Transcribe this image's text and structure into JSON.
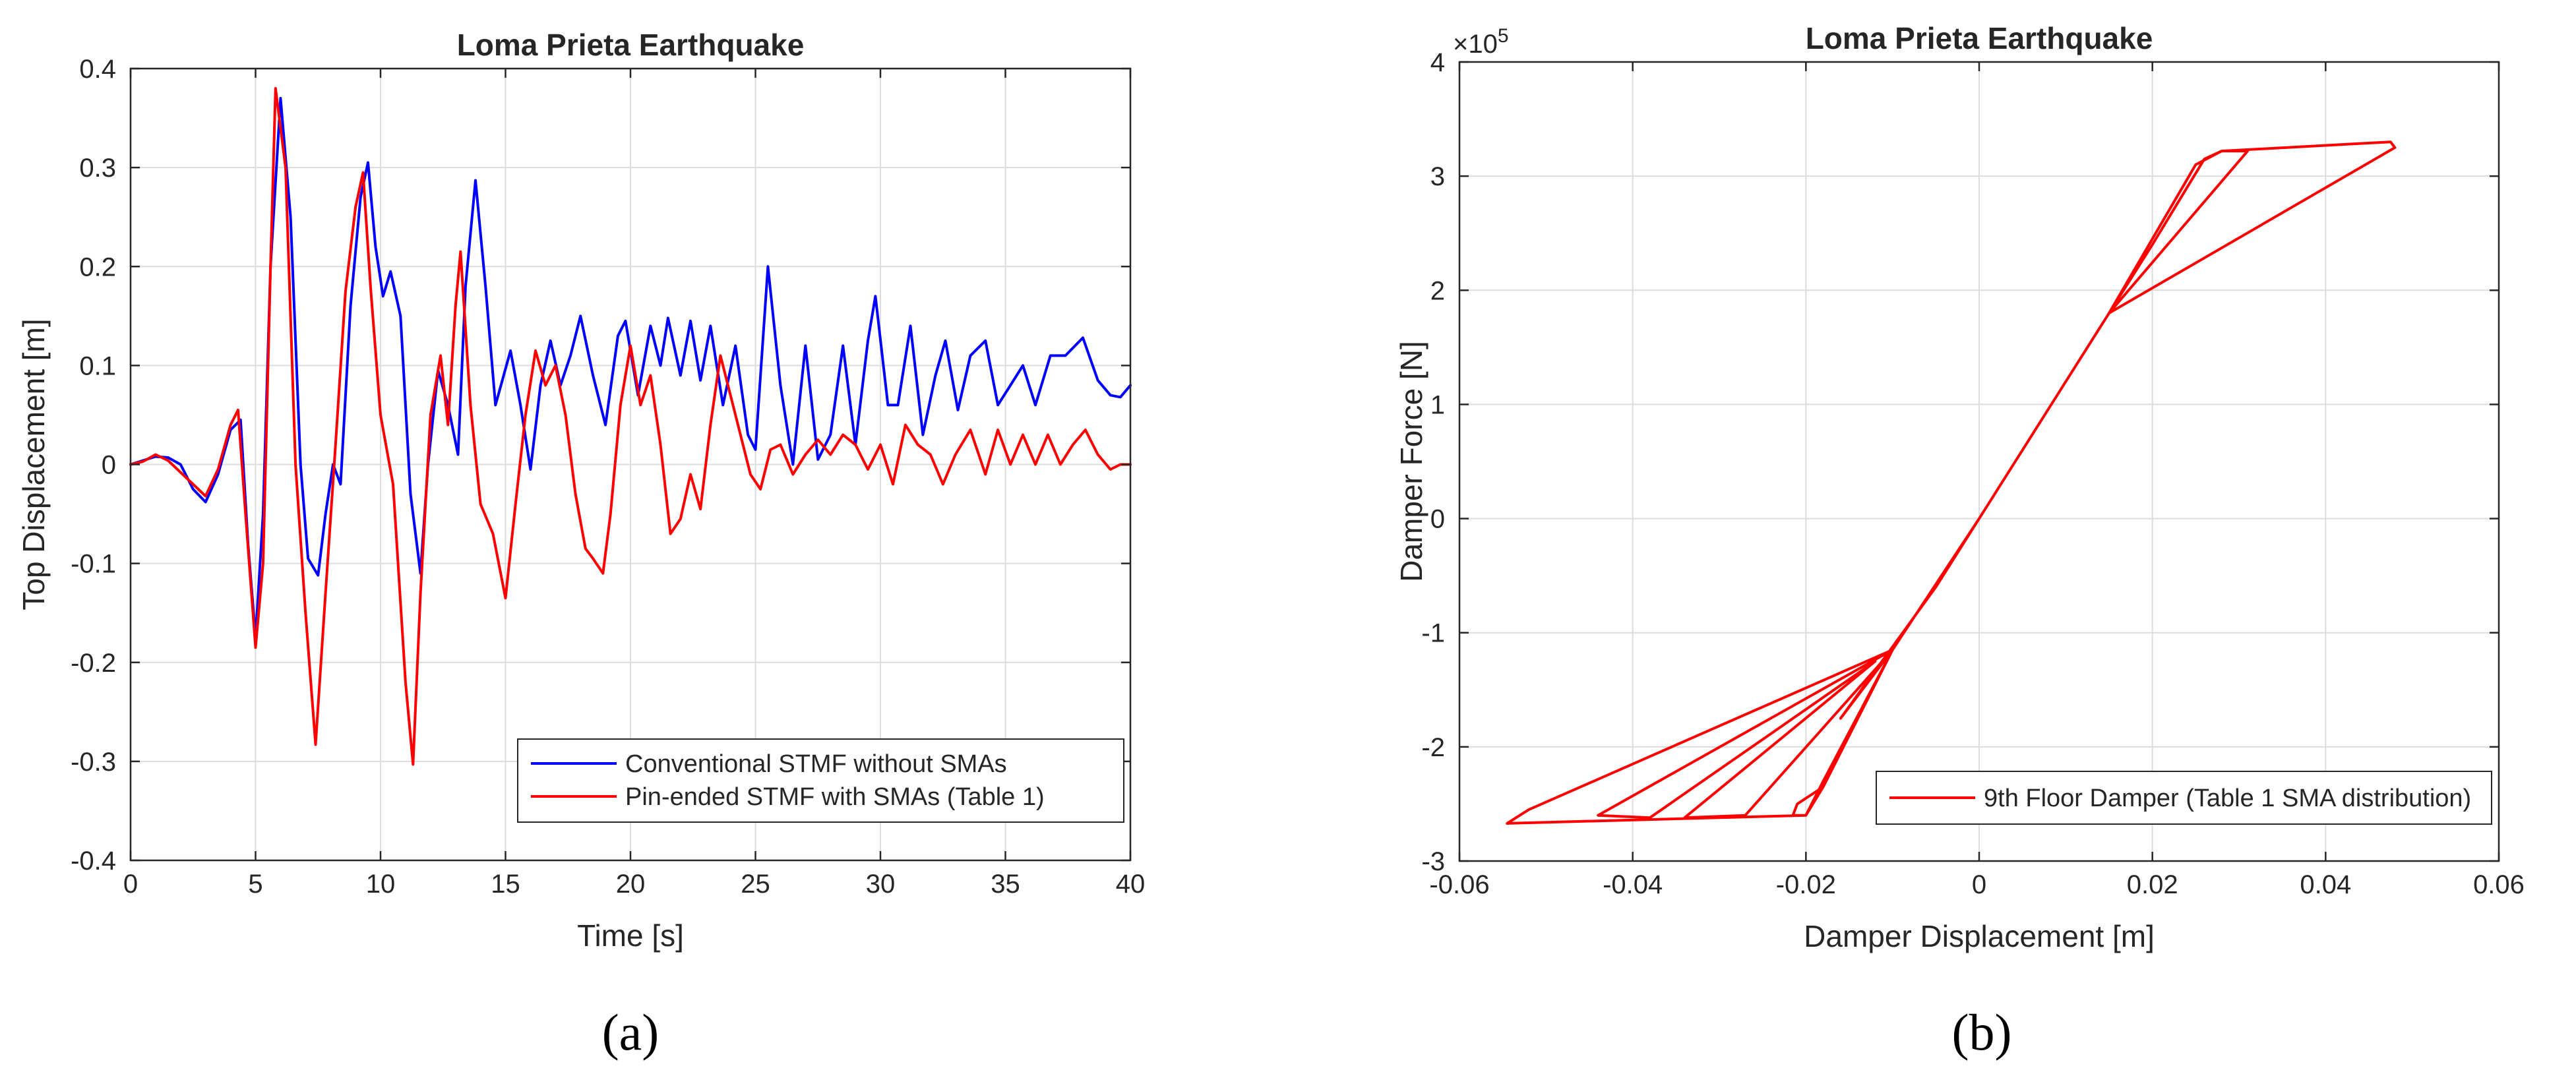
{
  "chart_data": [
    {
      "type": "line",
      "panel_label": "(a)",
      "title": "Loma Prieta Earthquake",
      "xlabel": "Time [s]",
      "ylabel": "Top Displacement [m]",
      "xlim": [
        0,
        40
      ],
      "ylim": [
        -0.4,
        0.4
      ],
      "xticks": [
        0,
        5,
        10,
        15,
        20,
        25,
        30,
        35,
        40
      ],
      "yticks": [
        -0.4,
        -0.3,
        -0.2,
        -0.1,
        0,
        0.1,
        0.2,
        0.3,
        0.4
      ],
      "xtick_labels": [
        "0",
        "5",
        "10",
        "15",
        "20",
        "25",
        "30",
        "35",
        "40"
      ],
      "ytick_labels": [
        "-0.4",
        "-0.3",
        "-0.2",
        "-0.1",
        "0",
        "0.1",
        "0.2",
        "0.3",
        "0.4"
      ],
      "grid": true,
      "legend_position": "bottom-right",
      "series": [
        {
          "name": "Conventional STMF without SMAs",
          "color": "#0000ff",
          "points": [
            [
              0,
              0
            ],
            [
              0.5,
              0.004
            ],
            [
              1.0,
              0.008
            ],
            [
              1.5,
              0.007
            ],
            [
              2.0,
              0.0
            ],
            [
              2.5,
              -0.025
            ],
            [
              3.0,
              -0.038
            ],
            [
              3.5,
              -0.01
            ],
            [
              4.0,
              0.035
            ],
            [
              4.4,
              0.045
            ],
            [
              4.7,
              -0.08
            ],
            [
              5.0,
              -0.175
            ],
            [
              5.3,
              -0.05
            ],
            [
              5.6,
              0.2
            ],
            [
              6.0,
              0.37
            ],
            [
              6.4,
              0.25
            ],
            [
              6.8,
              0.0
            ],
            [
              7.1,
              -0.095
            ],
            [
              7.5,
              -0.112
            ],
            [
              7.8,
              -0.05
            ],
            [
              8.1,
              0.0
            ],
            [
              8.4,
              -0.02
            ],
            [
              8.8,
              0.16
            ],
            [
              9.2,
              0.27
            ],
            [
              9.5,
              0.305
            ],
            [
              9.8,
              0.22
            ],
            [
              10.1,
              0.17
            ],
            [
              10.4,
              0.195
            ],
            [
              10.8,
              0.15
            ],
            [
              11.2,
              -0.03
            ],
            [
              11.6,
              -0.11
            ],
            [
              11.9,
              0.0
            ],
            [
              12.3,
              0.095
            ],
            [
              12.7,
              0.06
            ],
            [
              13.1,
              0.01
            ],
            [
              13.4,
              0.18
            ],
            [
              13.8,
              0.287
            ],
            [
              14.2,
              0.18
            ],
            [
              14.6,
              0.06
            ],
            [
              15.2,
              0.115
            ],
            [
              15.6,
              0.06
            ],
            [
              16.0,
              -0.005
            ],
            [
              16.4,
              0.08
            ],
            [
              16.8,
              0.125
            ],
            [
              17.2,
              0.08
            ],
            [
              17.6,
              0.11
            ],
            [
              18.0,
              0.15
            ],
            [
              18.5,
              0.09
            ],
            [
              19.0,
              0.04
            ],
            [
              19.5,
              0.13
            ],
            [
              19.8,
              0.145
            ],
            [
              20.3,
              0.07
            ],
            [
              20.8,
              0.14
            ],
            [
              21.2,
              0.1
            ],
            [
              21.5,
              0.148
            ],
            [
              22.0,
              0.09
            ],
            [
              22.4,
              0.145
            ],
            [
              22.8,
              0.085
            ],
            [
              23.2,
              0.14
            ],
            [
              23.7,
              0.06
            ],
            [
              24.2,
              0.12
            ],
            [
              24.7,
              0.03
            ],
            [
              25.0,
              0.015
            ],
            [
              25.5,
              0.2
            ],
            [
              26.0,
              0.08
            ],
            [
              26.5,
              0.0
            ],
            [
              27.0,
              0.12
            ],
            [
              27.5,
              0.005
            ],
            [
              28.0,
              0.03
            ],
            [
              28.5,
              0.12
            ],
            [
              29.0,
              0.02
            ],
            [
              29.5,
              0.125
            ],
            [
              29.8,
              0.17
            ],
            [
              30.3,
              0.06
            ],
            [
              30.7,
              0.06
            ],
            [
              31.2,
              0.14
            ],
            [
              31.7,
              0.03
            ],
            [
              32.2,
              0.09
            ],
            [
              32.6,
              0.125
            ],
            [
              33.1,
              0.055
            ],
            [
              33.6,
              0.11
            ],
            [
              34.2,
              0.125
            ],
            [
              34.7,
              0.06
            ],
            [
              35.2,
              0.08
            ],
            [
              35.7,
              0.1
            ],
            [
              36.2,
              0.06
            ],
            [
              36.8,
              0.11
            ],
            [
              37.4,
              0.11
            ],
            [
              38.1,
              0.128
            ],
            [
              38.7,
              0.085
            ],
            [
              39.2,
              0.07
            ],
            [
              39.6,
              0.068
            ],
            [
              40.0,
              0.08
            ]
          ]
        },
        {
          "name": "Pin-ended STMF with SMAs (Table 1)",
          "color": "#ff0000",
          "points": [
            [
              0,
              0
            ],
            [
              0.5,
              0.003
            ],
            [
              1.0,
              0.01
            ],
            [
              1.5,
              0.004
            ],
            [
              2.0,
              -0.008
            ],
            [
              2.5,
              -0.02
            ],
            [
              3.0,
              -0.032
            ],
            [
              3.5,
              -0.005
            ],
            [
              4.0,
              0.04
            ],
            [
              4.3,
              0.055
            ],
            [
              4.6,
              -0.05
            ],
            [
              5.0,
              -0.185
            ],
            [
              5.3,
              -0.1
            ],
            [
              5.6,
              0.2
            ],
            [
              5.8,
              0.38
            ],
            [
              6.2,
              0.3
            ],
            [
              6.6,
              0.0
            ],
            [
              7.0,
              -0.15
            ],
            [
              7.4,
              -0.283
            ],
            [
              7.8,
              -0.13
            ],
            [
              8.2,
              0.02
            ],
            [
              8.6,
              0.175
            ],
            [
              9.0,
              0.26
            ],
            [
              9.3,
              0.295
            ],
            [
              9.6,
              0.18
            ],
            [
              10.0,
              0.05
            ],
            [
              10.5,
              -0.02
            ],
            [
              11.0,
              -0.22
            ],
            [
              11.3,
              -0.303
            ],
            [
              11.6,
              -0.13
            ],
            [
              12.0,
              0.05
            ],
            [
              12.4,
              0.11
            ],
            [
              12.7,
              0.04
            ],
            [
              13.0,
              0.16
            ],
            [
              13.2,
              0.215
            ],
            [
              13.6,
              0.06
            ],
            [
              14.0,
              -0.04
            ],
            [
              14.5,
              -0.07
            ],
            [
              15.0,
              -0.135
            ],
            [
              15.4,
              -0.04
            ],
            [
              15.8,
              0.05
            ],
            [
              16.2,
              0.115
            ],
            [
              16.6,
              0.08
            ],
            [
              17.0,
              0.1
            ],
            [
              17.4,
              0.05
            ],
            [
              17.8,
              -0.03
            ],
            [
              18.2,
              -0.085
            ],
            [
              18.5,
              -0.095
            ],
            [
              18.9,
              -0.11
            ],
            [
              19.2,
              -0.05
            ],
            [
              19.6,
              0.06
            ],
            [
              20.0,
              0.12
            ],
            [
              20.4,
              0.06
            ],
            [
              20.8,
              0.09
            ],
            [
              21.2,
              0.02
            ],
            [
              21.6,
              -0.07
            ],
            [
              22.0,
              -0.055
            ],
            [
              22.4,
              -0.01
            ],
            [
              22.8,
              -0.045
            ],
            [
              23.2,
              0.04
            ],
            [
              23.6,
              0.11
            ],
            [
              24.0,
              0.07
            ],
            [
              24.4,
              0.03
            ],
            [
              24.8,
              -0.01
            ],
            [
              25.2,
              -0.025
            ],
            [
              25.6,
              0.015
            ],
            [
              26.0,
              0.02
            ],
            [
              26.5,
              -0.01
            ],
            [
              27.0,
              0.01
            ],
            [
              27.5,
              0.025
            ],
            [
              28.0,
              0.01
            ],
            [
              28.5,
              0.03
            ],
            [
              29.0,
              0.02
            ],
            [
              29.5,
              -0.005
            ],
            [
              30.0,
              0.02
            ],
            [
              30.5,
              -0.02
            ],
            [
              31.0,
              0.04
            ],
            [
              31.5,
              0.02
            ],
            [
              32.0,
              0.01
            ],
            [
              32.5,
              -0.02
            ],
            [
              33.0,
              0.01
            ],
            [
              33.6,
              0.035
            ],
            [
              34.2,
              -0.01
            ],
            [
              34.7,
              0.035
            ],
            [
              35.2,
              0.0
            ],
            [
              35.7,
              0.03
            ],
            [
              36.2,
              0.0
            ],
            [
              36.7,
              0.03
            ],
            [
              37.2,
              0.0
            ],
            [
              37.7,
              0.02
            ],
            [
              38.2,
              0.035
            ],
            [
              38.7,
              0.01
            ],
            [
              39.2,
              -0.005
            ],
            [
              39.6,
              0.0
            ],
            [
              40.0,
              0.0
            ]
          ]
        }
      ]
    },
    {
      "type": "line",
      "panel_label": "(b)",
      "title": "Loma Prieta Earthquake",
      "xlabel": "Damper Displacement [m]",
      "ylabel": "Damper Force [N]",
      "y_multiplier": "×10",
      "y_exponent": "5",
      "xlim": [
        -0.06,
        0.06
      ],
      "ylim": [
        -3,
        4
      ],
      "xticks": [
        -0.06,
        -0.04,
        -0.02,
        0,
        0.02,
        0.04,
        0.06
      ],
      "yticks": [
        -3,
        -2,
        -1,
        0,
        1,
        2,
        3,
        4
      ],
      "xtick_labels": [
        "-0.06",
        "-0.04",
        "-0.02",
        "0",
        "0.02",
        "0.04",
        "0.06"
      ],
      "ytick_labels": [
        "-3",
        "-2",
        "-1",
        "0",
        "1",
        "2",
        "3",
        "4"
      ],
      "grid": true,
      "legend_position": "bottom-right",
      "series": [
        {
          "name": "9th Floor Damper (Table 1 SMA distribution)",
          "color": "#ff0000",
          "points": [
            [
              0,
              0
            ],
            [
              0.015,
              1.8
            ],
            [
              0.048,
              3.25
            ],
            [
              0.0475,
              3.3
            ],
            [
              0.028,
              3.22
            ],
            [
              0.026,
              3.15
            ],
            [
              0.02,
              2.4
            ],
            [
              0.015,
              1.8
            ],
            [
              0.025,
              3.1
            ],
            [
              0.028,
              3.22
            ],
            [
              0.031,
              3.22
            ],
            [
              0.015,
              1.8
            ],
            [
              0,
              0
            ],
            [
              -0.01,
              -1.15
            ],
            [
              -0.018,
              -2.35
            ],
            [
              -0.02,
              -2.6
            ],
            [
              -0.0545,
              -2.67
            ],
            [
              -0.052,
              -2.55
            ],
            [
              -0.01,
              -1.15
            ],
            [
              -0.044,
              -2.6
            ],
            [
              -0.038,
              -2.62
            ],
            [
              -0.012,
              -1.25
            ],
            [
              -0.034,
              -2.62
            ],
            [
              -0.027,
              -2.6
            ],
            [
              -0.01,
              -1.15
            ],
            [
              -0.018,
              -2.35
            ],
            [
              -0.021,
              -2.5
            ],
            [
              -0.0215,
              -2.6
            ],
            [
              -0.02,
              -2.6
            ],
            [
              -0.018,
              -2.3
            ],
            [
              -0.01,
              -1.15
            ],
            [
              -0.016,
              -1.75
            ],
            [
              -0.005,
              -0.6
            ],
            [
              0,
              0
            ]
          ]
        }
      ]
    }
  ]
}
